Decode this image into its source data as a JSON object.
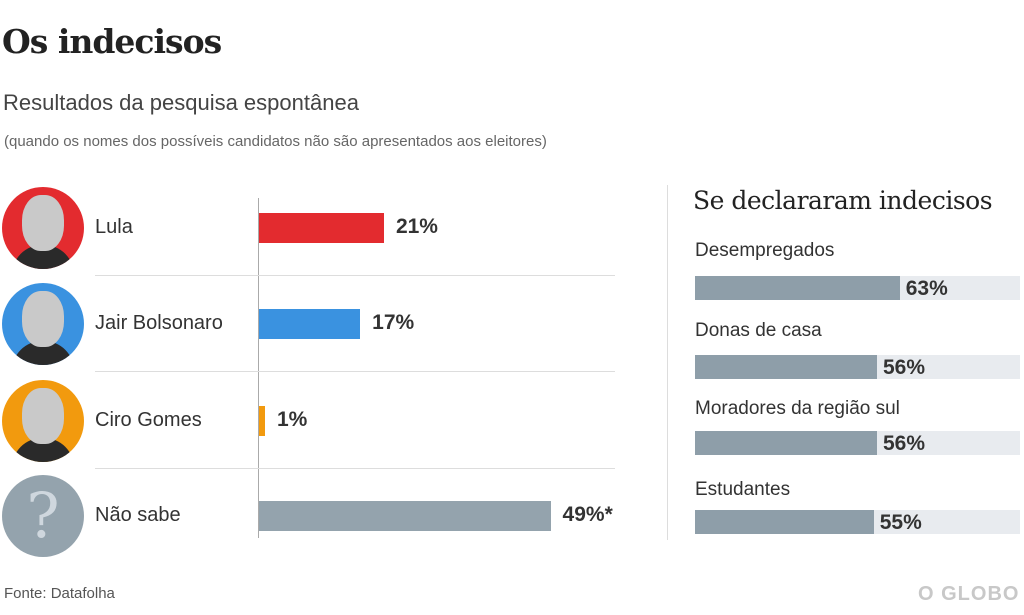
{
  "title": "Os indecisos",
  "subtitle": "Resultados da pesquisa espontânea",
  "note": "(quando os nomes dos possíveis candidatos não são apresentados aos eleitores)",
  "source": "Fonte: Datafolha",
  "logo": "O GLOBO",
  "chart_data": [
    {
      "type": "bar",
      "orientation": "horizontal",
      "title": "Resultados da pesquisa espontânea",
      "categories": [
        "Lula",
        "Jair Bolsonaro",
        "Ciro Gomes",
        "Não sabe"
      ],
      "values": [
        21,
        17,
        1,
        49
      ],
      "labels": [
        "21%",
        "17%",
        "1%",
        "49%*"
      ],
      "colors": [
        "#e32b2f",
        "#3a92e0",
        "#f29a0e",
        "#94a3ad"
      ],
      "xlim": [
        0,
        100
      ]
    },
    {
      "type": "bar",
      "orientation": "horizontal",
      "title": "Se declararam indecisos",
      "categories": [
        "Desempregados",
        "Donas de casa",
        "Moradores da região sul",
        "Estudantes"
      ],
      "values": [
        63,
        56,
        56,
        55
      ],
      "labels": [
        "63%",
        "56%",
        "56%",
        "55%"
      ],
      "color": "#8e9ea9",
      "xlim": [
        0,
        100
      ]
    }
  ]
}
